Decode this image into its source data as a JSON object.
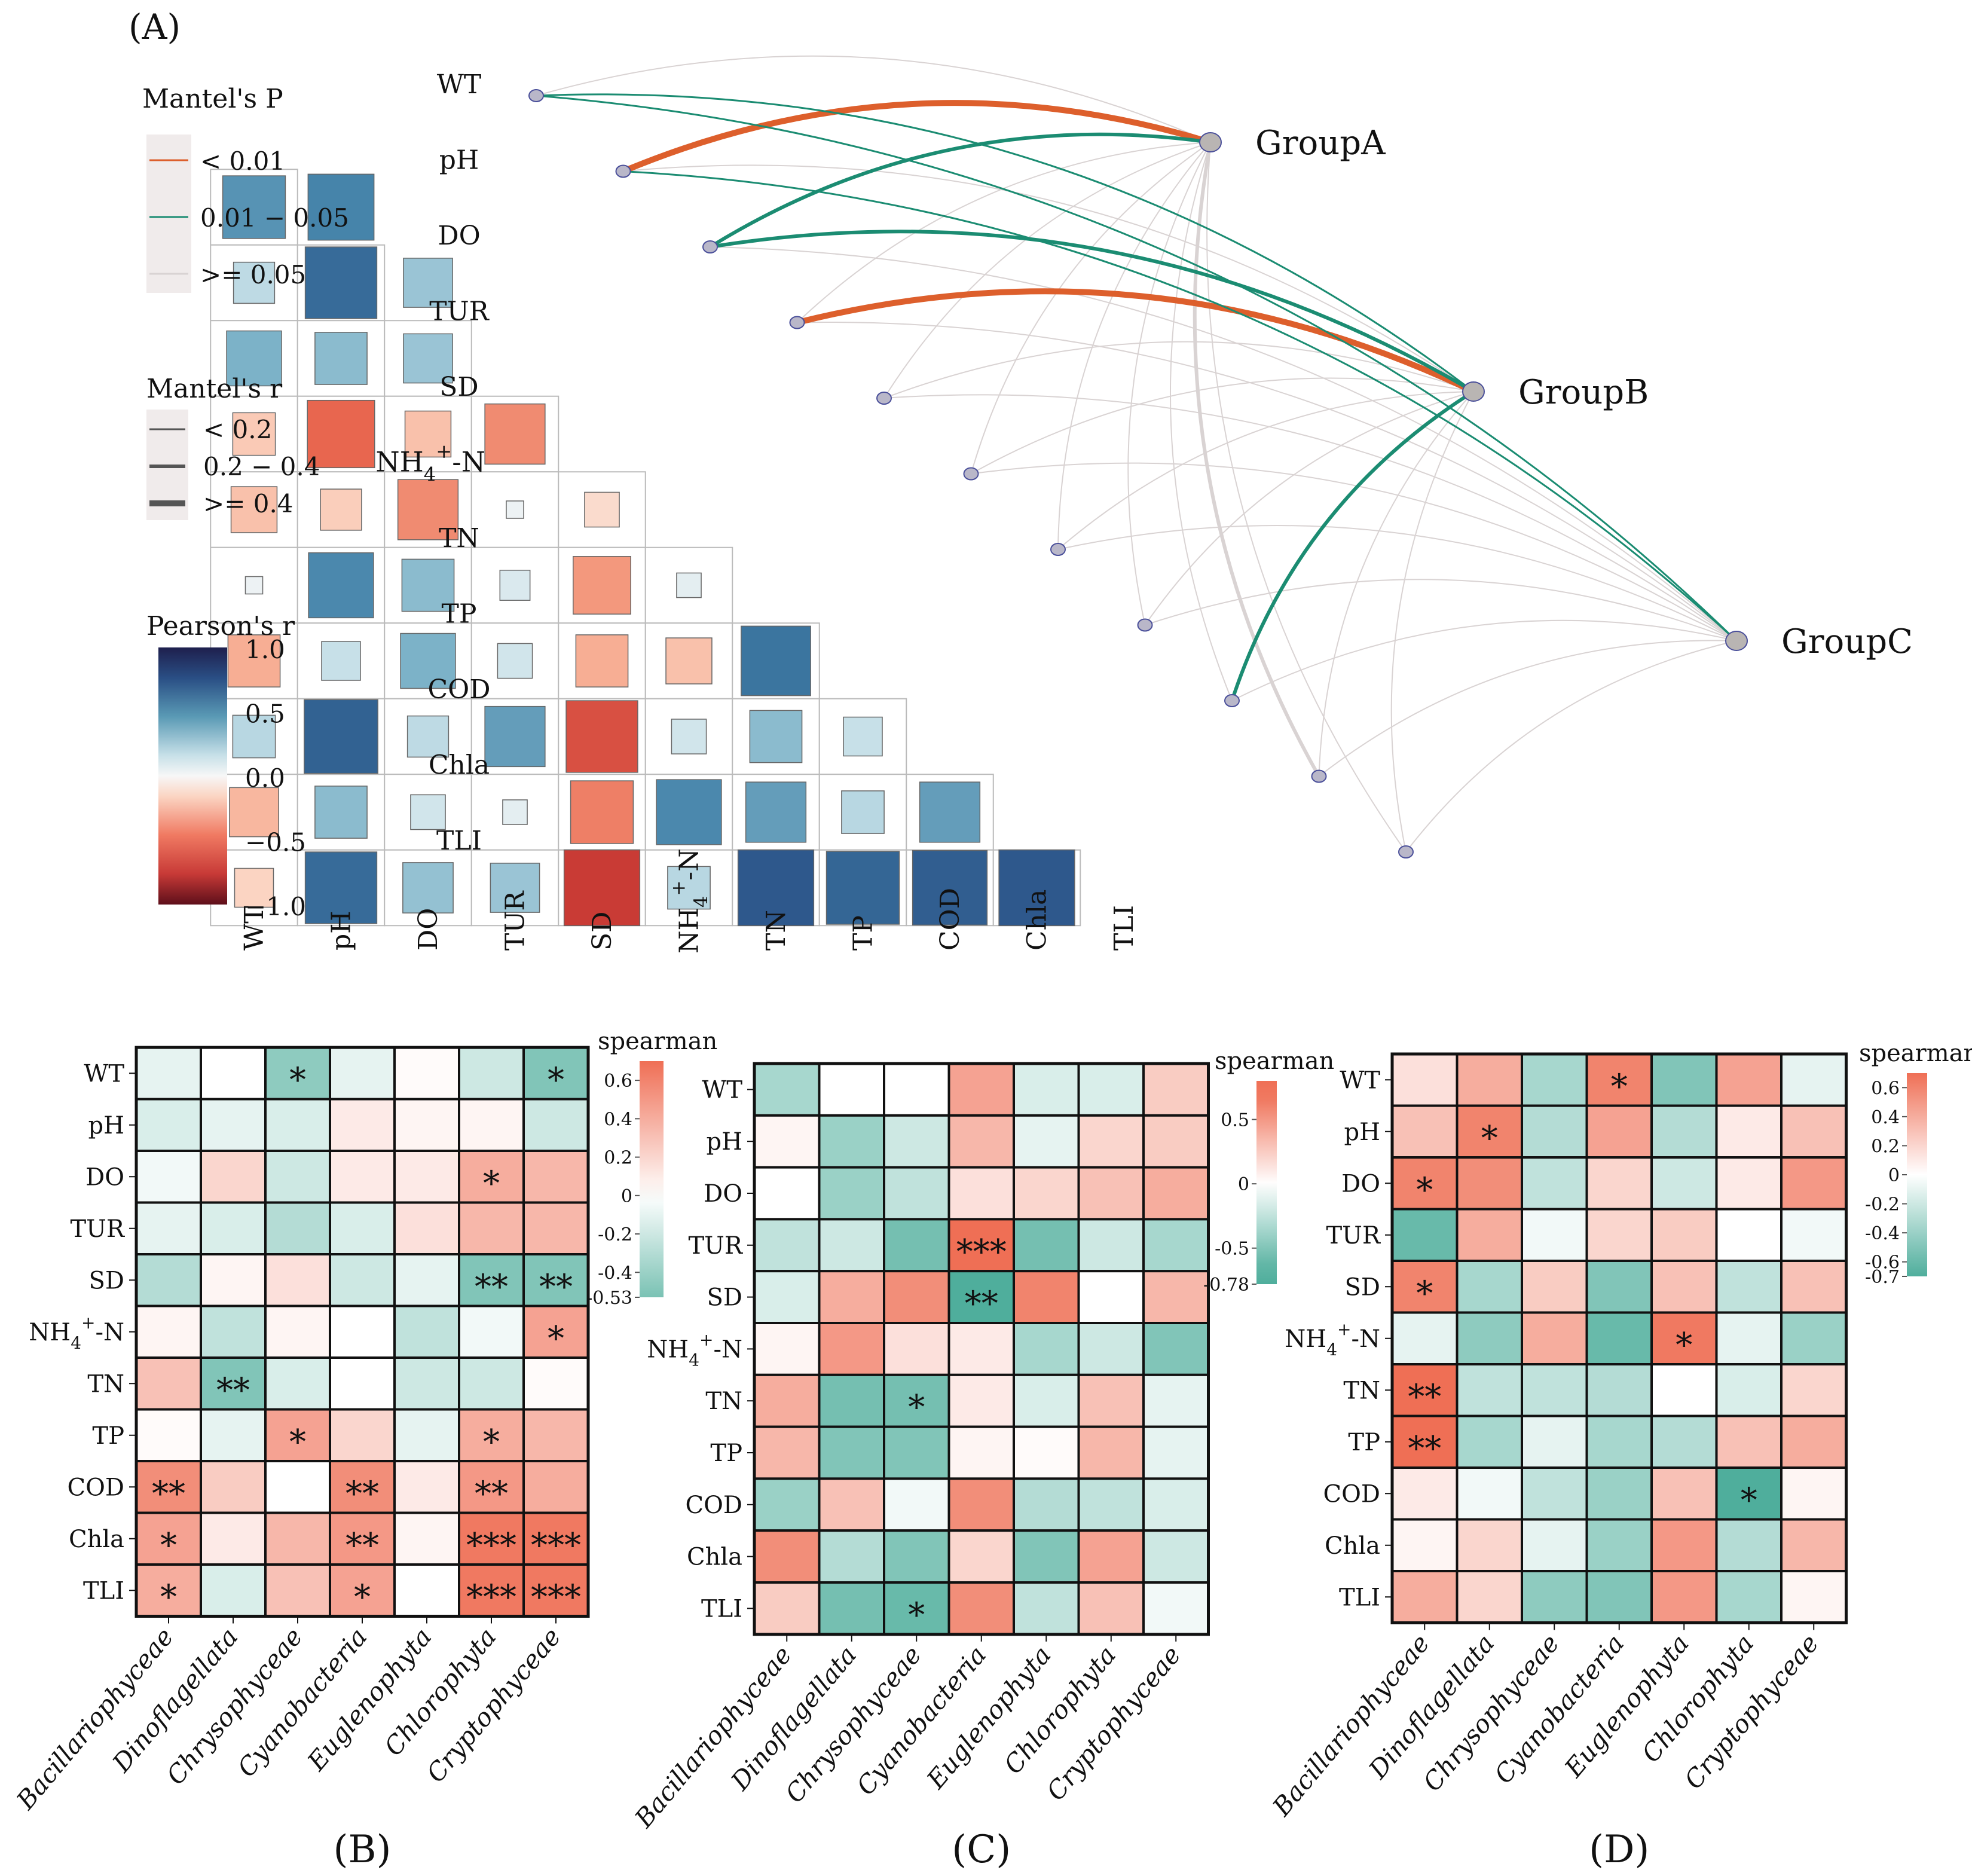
{
  "chart_data": [
    {
      "panel": "(A)",
      "type": "heatmap",
      "subtype": "mantel-test-correlation",
      "variables": [
        "WT",
        "pH",
        "DO",
        "TUR",
        "SD",
        "NH4+-N",
        "TN",
        "TP",
        "COD",
        "Chla",
        "TLI"
      ],
      "display_labels": {
        "NH4+-N": {
          "base": "NH",
          "sub": "4",
          "sup": "+",
          "tail": "-N"
        }
      },
      "pearson_lower_triangle": [
        [
          -0.05
        ],
        [
          0.65,
          0.72
        ],
        [
          0.28,
          0.85,
          0.4
        ],
        [
          0.5,
          0.45,
          0.4
        ],
        [
          -0.3,
          -0.75,
          -0.35,
          -0.6
        ],
        [
          -0.35,
          -0.28,
          -0.6,
          0.05,
          -0.2
        ],
        [
          0.05,
          0.7,
          0.45,
          0.15,
          -0.55,
          0.1
        ],
        [
          -0.45,
          0.25,
          0.5,
          0.2,
          -0.45,
          -0.35,
          0.8
        ],
        [
          0.3,
          0.9,
          0.28,
          0.6,
          -0.85,
          0.2,
          0.45,
          0.25
        ],
        [
          -0.4,
          0.45,
          0.2,
          0.1,
          -0.65,
          0.7,
          0.6,
          0.3,
          0.6
        ],
        [
          -0.25,
          0.85,
          0.42,
          0.4,
          -0.95,
          0.3,
          0.95,
          0.88,
          0.92,
          0.95
        ]
      ],
      "groups": [
        "GroupA",
        "GroupB",
        "GroupC"
      ],
      "mantel_links": [
        {
          "group": "GroupA",
          "variable": "pH",
          "p": "< 0.01",
          "r": ">= 0.4"
        },
        {
          "group": "GroupA",
          "variable": "DO",
          "p": "0.01 - 0.05",
          "r": "0.2 - 0.4"
        },
        {
          "group": "GroupA",
          "variable": "WT",
          "p": ">= 0.05",
          "r": "< 0.2"
        },
        {
          "group": "GroupA",
          "variable": "TUR",
          "p": ">= 0.05",
          "r": "< 0.2"
        },
        {
          "group": "GroupA",
          "variable": "SD",
          "p": ">= 0.05",
          "r": "< 0.2"
        },
        {
          "group": "GroupA",
          "variable": "NH4+-N",
          "p": ">= 0.05",
          "r": "< 0.2"
        },
        {
          "group": "GroupA",
          "variable": "TN",
          "p": ">= 0.05",
          "r": "< 0.2"
        },
        {
          "group": "GroupA",
          "variable": "TP",
          "p": ">= 0.05",
          "r": "< 0.2"
        },
        {
          "group": "GroupA",
          "variable": "COD",
          "p": ">= 0.05",
          "r": "< 0.2"
        },
        {
          "group": "GroupA",
          "variable": "Chla",
          "p": ">= 0.05",
          "r": ">= 0.4"
        },
        {
          "group": "GroupA",
          "variable": "TLI",
          "p": ">= 0.05",
          "r": "< 0.2"
        },
        {
          "group": "GroupB",
          "variable": "TUR",
          "p": "< 0.01",
          "r": ">= 0.4"
        },
        {
          "group": "GroupB",
          "variable": "WT",
          "p": "0.01 - 0.05",
          "r": "< 0.2"
        },
        {
          "group": "GroupB",
          "variable": "DO",
          "p": "0.01 - 0.05",
          "r": "0.2 - 0.4"
        },
        {
          "group": "GroupB",
          "variable": "COD",
          "p": "0.01 - 0.05",
          "r": "0.2 - 0.4"
        },
        {
          "group": "GroupB",
          "variable": "pH",
          "p": ">= 0.05",
          "r": "< 0.2"
        },
        {
          "group": "GroupB",
          "variable": "SD",
          "p": ">= 0.05",
          "r": "< 0.2"
        },
        {
          "group": "GroupB",
          "variable": "NH4+-N",
          "p": ">= 0.05",
          "r": "< 0.2"
        },
        {
          "group": "GroupB",
          "variable": "TN",
          "p": ">= 0.05",
          "r": "< 0.2"
        },
        {
          "group": "GroupB",
          "variable": "TP",
          "p": ">= 0.05",
          "r": "< 0.2"
        },
        {
          "group": "GroupB",
          "variable": "Chla",
          "p": ">= 0.05",
          "r": "< 0.2"
        },
        {
          "group": "GroupB",
          "variable": "TLI",
          "p": ">= 0.05",
          "r": "< 0.2"
        },
        {
          "group": "GroupC",
          "variable": "WT",
          "p": "0.01 - 0.05",
          "r": "< 0.2"
        },
        {
          "group": "GroupC",
          "variable": "pH",
          "p": "0.01 - 0.05",
          "r": "< 0.2"
        },
        {
          "group": "GroupC",
          "variable": "DO",
          "p": ">= 0.05",
          "r": "< 0.2"
        },
        {
          "group": "GroupC",
          "variable": "TUR",
          "p": ">= 0.05",
          "r": "< 0.2"
        },
        {
          "group": "GroupC",
          "variable": "SD",
          "p": ">= 0.05",
          "r": "< 0.2"
        },
        {
          "group": "GroupC",
          "variable": "NH4+-N",
          "p": ">= 0.05",
          "r": "< 0.2"
        },
        {
          "group": "GroupC",
          "variable": "TN",
          "p": ">= 0.05",
          "r": "< 0.2"
        },
        {
          "group": "GroupC",
          "variable": "TP",
          "p": ">= 0.05",
          "r": "< 0.2"
        },
        {
          "group": "GroupC",
          "variable": "COD",
          "p": ">= 0.05",
          "r": "< 0.2"
        },
        {
          "group": "GroupC",
          "variable": "Chla",
          "p": ">= 0.05",
          "r": "< 0.2"
        },
        {
          "group": "GroupC",
          "variable": "TLI",
          "p": ">= 0.05",
          "r": "< 0.2"
        }
      ],
      "legend": {
        "mantel_p_title": "Mantel's P",
        "mantel_p_items": [
          {
            "label": "< 0.01",
            "color": "#dd5f2c"
          },
          {
            "label": "0.01 − 0.05",
            "color": "#1b8c72"
          },
          {
            "label": ">= 0.05",
            "color": "#d9d3d3"
          }
        ],
        "mantel_r_title": "Mantel's r",
        "mantel_r_items": [
          "< 0.2",
          "0.2 − 0.4",
          ">= 0.4"
        ],
        "pearson_title": "Pearson's r",
        "pearson_ticks": [
          "1.0",
          "0.5",
          "0.0",
          "−0.5",
          "−1.0"
        ],
        "pearson_range": [
          -1.0,
          1.0
        ]
      }
    },
    {
      "panel": "(B)",
      "type": "heatmap",
      "legend_title": "spearman",
      "colorbar_range": [
        -0.53,
        0.7
      ],
      "colorbar_ticks": [
        {
          "v": 0.6,
          "label": "0.6"
        },
        {
          "v": 0.4,
          "label": "0.4"
        },
        {
          "v": 0.2,
          "label": "0.2"
        },
        {
          "v": 0,
          "label": "0"
        },
        {
          "v": -0.2,
          "label": "-0.2"
        },
        {
          "v": -0.4,
          "label": "-0.4"
        },
        {
          "v": -0.53,
          "label": "-0.53"
        }
      ],
      "rows": [
        "WT",
        "pH",
        "DO",
        "TUR",
        "SD",
        "NH4+-N",
        "TN",
        "TP",
        "COD",
        "Chla",
        "TLI"
      ],
      "columns": [
        "Bacillariophyceae",
        "Dinoflagellata",
        "Chrysophyceae",
        "Cyanobacteria",
        "Euglenophyta",
        "Chlorophyta",
        "Cryptophyceae"
      ],
      "values": [
        [
          -0.1,
          0.0,
          -0.45,
          -0.1,
          0.02,
          -0.2,
          -0.5
        ],
        [
          -0.15,
          -0.1,
          -0.15,
          0.1,
          0.05,
          0.05,
          -0.2
        ],
        [
          -0.05,
          0.2,
          -0.2,
          0.1,
          0.1,
          0.4,
          0.35
        ],
        [
          -0.1,
          -0.15,
          -0.3,
          -0.15,
          0.15,
          0.35,
          0.35
        ],
        [
          -0.3,
          0.05,
          0.15,
          -0.2,
          -0.1,
          -0.5,
          -0.5
        ],
        [
          0.05,
          -0.25,
          0.05,
          0.0,
          -0.25,
          -0.05,
          0.45
        ],
        [
          0.3,
          -0.5,
          -0.15,
          0.0,
          -0.2,
          -0.2,
          0.02
        ],
        [
          0.02,
          -0.1,
          0.45,
          0.2,
          -0.1,
          0.4,
          0.35
        ],
        [
          0.55,
          0.25,
          0.0,
          0.55,
          0.1,
          0.5,
          0.4
        ],
        [
          0.45,
          0.1,
          0.35,
          0.5,
          0.05,
          0.65,
          0.65
        ],
        [
          0.4,
          -0.15,
          0.3,
          0.45,
          0.0,
          0.65,
          0.65
        ]
      ],
      "significance": [
        [
          "",
          "",
          "*",
          "",
          "",
          "",
          "*"
        ],
        [
          "",
          "",
          "",
          "",
          "",
          "",
          ""
        ],
        [
          "",
          "",
          "",
          "",
          "",
          "*",
          ""
        ],
        [
          "",
          "",
          "",
          "",
          "",
          "",
          ""
        ],
        [
          "",
          "",
          "",
          "",
          "",
          "**",
          "**"
        ],
        [
          "",
          "",
          "",
          "",
          "",
          "",
          "*"
        ],
        [
          "",
          "**",
          "",
          "",
          "",
          "",
          ""
        ],
        [
          "",
          "",
          "*",
          "",
          "",
          "*",
          ""
        ],
        [
          "**",
          "",
          "",
          "**",
          "",
          "**",
          ""
        ],
        [
          "*",
          "",
          "",
          "**",
          "",
          "***",
          "***"
        ],
        [
          "*",
          "",
          "",
          "*",
          "",
          "***",
          "***"
        ]
      ]
    },
    {
      "panel": "(C)",
      "type": "heatmap",
      "legend_title": "spearman",
      "colorbar_range": [
        -0.78,
        0.8
      ],
      "colorbar_ticks": [
        {
          "v": 0.5,
          "label": "0.5"
        },
        {
          "v": 0,
          "label": "0"
        },
        {
          "v": -0.5,
          "label": "-0.5"
        },
        {
          "v": -0.78,
          "label": "-0.78"
        }
      ],
      "rows": [
        "WT",
        "pH",
        "DO",
        "TUR",
        "SD",
        "NH4+-N",
        "TN",
        "TP",
        "COD",
        "Chla",
        "TLI"
      ],
      "columns": [
        "Bacillariophyceae",
        "Dinoflagellata",
        "Chrysophyceae",
        "Cyanobacteria",
        "Euglenophyta",
        "Chlorophyta",
        "Cryptophyceae"
      ],
      "values": [
        [
          -0.35,
          0.0,
          0.0,
          0.45,
          -0.15,
          -0.15,
          0.25
        ],
        [
          0.05,
          -0.4,
          -0.2,
          0.35,
          -0.1,
          0.2,
          0.25
        ],
        [
          0.0,
          -0.4,
          -0.25,
          0.15,
          0.2,
          0.3,
          0.4
        ],
        [
          -0.25,
          -0.2,
          -0.55,
          0.75,
          -0.55,
          -0.2,
          -0.35
        ],
        [
          -0.15,
          0.4,
          0.55,
          -0.78,
          0.6,
          0.0,
          0.35
        ],
        [
          0.05,
          0.5,
          0.15,
          0.1,
          -0.35,
          -0.2,
          -0.5
        ],
        [
          0.4,
          -0.55,
          -0.55,
          0.1,
          -0.15,
          0.3,
          -0.1
        ],
        [
          0.35,
          -0.5,
          -0.5,
          0.05,
          0.02,
          0.35,
          -0.1
        ],
        [
          -0.4,
          0.3,
          -0.05,
          0.55,
          -0.3,
          -0.25,
          -0.15
        ],
        [
          0.55,
          -0.3,
          -0.5,
          0.2,
          -0.5,
          0.45,
          -0.2
        ],
        [
          0.25,
          -0.55,
          -0.6,
          0.55,
          -0.25,
          0.3,
          -0.05
        ]
      ],
      "significance": [
        [
          "",
          "",
          "",
          "",
          "",
          "",
          ""
        ],
        [
          "",
          "",
          "",
          "",
          "",
          "",
          ""
        ],
        [
          "",
          "",
          "",
          "",
          "",
          "",
          ""
        ],
        [
          "",
          "",
          "",
          "***",
          "",
          "",
          ""
        ],
        [
          "",
          "",
          "",
          "**",
          "",
          "",
          ""
        ],
        [
          "",
          "",
          "",
          "",
          "",
          "",
          ""
        ],
        [
          "",
          "",
          "*",
          "",
          "",
          "",
          ""
        ],
        [
          "",
          "",
          "",
          "",
          "",
          "",
          ""
        ],
        [
          "",
          "",
          "",
          "",
          "",
          "",
          ""
        ],
        [
          "",
          "",
          "",
          "",
          "",
          "",
          ""
        ],
        [
          "",
          "",
          "*",
          "",
          "",
          "",
          ""
        ]
      ]
    },
    {
      "panel": "(D)",
      "type": "heatmap",
      "legend_title": "spearman",
      "colorbar_range": [
        -0.7,
        0.7
      ],
      "colorbar_ticks": [
        {
          "v": 0.6,
          "label": "0.6"
        },
        {
          "v": 0.4,
          "label": "0.4"
        },
        {
          "v": 0.2,
          "label": "0.2"
        },
        {
          "v": 0,
          "label": "0"
        },
        {
          "v": -0.2,
          "label": "-0.2"
        },
        {
          "v": -0.4,
          "label": "-0.4"
        },
        {
          "v": -0.6,
          "label": "-0.6"
        },
        {
          "v": -0.7,
          "label": "-0.7"
        }
      ],
      "rows": [
        "WT",
        "pH",
        "DO",
        "TUR",
        "SD",
        "NH4+-N",
        "TN",
        "TP",
        "COD",
        "Chla",
        "TLI"
      ],
      "columns": [
        "Bacillariophyceae",
        "Dinoflagellata",
        "Chrysophyceae",
        "Cyanobacteria",
        "Euglenophyta",
        "Chlorophyta",
        "Cryptophyceae"
      ],
      "values": [
        [
          0.15,
          0.4,
          -0.35,
          0.6,
          -0.5,
          0.45,
          -0.1
        ],
        [
          0.3,
          0.6,
          -0.3,
          0.45,
          -0.3,
          0.1,
          0.3
        ],
        [
          0.6,
          0.55,
          -0.25,
          0.2,
          -0.2,
          0.1,
          0.5
        ],
        [
          -0.6,
          0.4,
          -0.05,
          0.2,
          0.25,
          0.0,
          -0.05
        ],
        [
          0.6,
          -0.35,
          0.25,
          -0.5,
          0.3,
          -0.25,
          0.3
        ],
        [
          -0.1,
          -0.45,
          0.4,
          -0.6,
          0.65,
          -0.1,
          -0.4
        ],
        [
          0.7,
          -0.25,
          -0.25,
          -0.3,
          0.0,
          -0.15,
          0.2
        ],
        [
          0.7,
          -0.35,
          -0.1,
          -0.35,
          -0.3,
          0.3,
          0.4
        ],
        [
          0.1,
          -0.05,
          -0.25,
          -0.4,
          0.3,
          -0.7,
          0.05
        ],
        [
          0.05,
          0.2,
          -0.1,
          -0.4,
          0.5,
          -0.3,
          0.35
        ],
        [
          0.4,
          0.2,
          -0.45,
          -0.5,
          0.5,
          -0.35,
          0.05
        ]
      ],
      "significance": [
        [
          "",
          "",
          "",
          "*",
          "",
          "",
          ""
        ],
        [
          "",
          "*",
          "",
          "",
          "",
          "",
          ""
        ],
        [
          "*",
          "",
          "",
          "",
          "",
          "",
          ""
        ],
        [
          "",
          "",
          "",
          "",
          "",
          "",
          ""
        ],
        [
          "*",
          "",
          "",
          "",
          "",
          "",
          ""
        ],
        [
          "",
          "",
          "",
          "",
          "*",
          "",
          ""
        ],
        [
          "**",
          "",
          "",
          "",
          "",
          "",
          ""
        ],
        [
          "**",
          "",
          "",
          "",
          "",
          "",
          ""
        ],
        [
          "",
          "",
          "",
          "",
          "",
          "*",
          ""
        ],
        [
          "",
          "",
          "",
          "",
          "",
          "",
          ""
        ],
        [
          "",
          "",
          "",
          "",
          "",
          "",
          ""
        ]
      ]
    }
  ]
}
